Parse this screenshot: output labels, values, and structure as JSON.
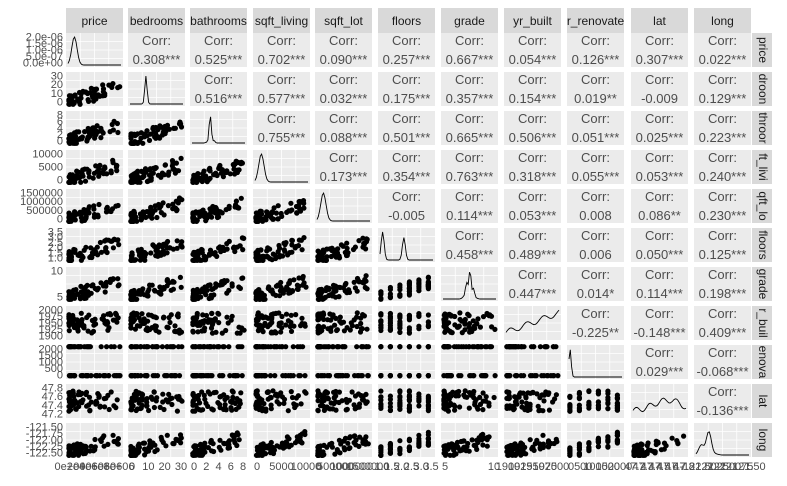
{
  "chart_data": {
    "type": "scatter",
    "title": "",
    "variables": [
      "price",
      "bedrooms",
      "bathrooms",
      "sqft_living",
      "sqft_lot",
      "floors",
      "grade",
      "yr_built",
      "yr_renovated",
      "lat",
      "long"
    ],
    "col_strip_labels": [
      "price",
      "bedrooms",
      "bathrooms",
      "sqft_living",
      "sqft_lot",
      "floors",
      "grade",
      "yr_built",
      "r_renovate",
      "lat",
      "long"
    ],
    "row_strip_labels": [
      "price",
      "droon",
      "throor",
      "ft_livi",
      "qft_lo",
      "floors",
      "grade",
      "r_buil",
      "enova",
      "lat",
      "long"
    ],
    "corr_label": "Corr:",
    "correlations": [
      [
        "0.308***",
        "0.525***",
        "0.702***",
        "0.090***",
        "0.257***",
        "0.667***",
        "0.054***",
        "0.126***",
        "0.307***",
        "0.022***"
      ],
      [
        "0.516***",
        "0.577***",
        "0.032***",
        "0.175***",
        "0.357***",
        "0.154***",
        "0.019**",
        "-0.009",
        "0.129***"
      ],
      [
        "0.755***",
        "0.088***",
        "0.501***",
        "0.665***",
        "0.506***",
        "0.051***",
        "0.025***",
        "0.223***"
      ],
      [
        "0.173***",
        "0.354***",
        "0.763***",
        "0.318***",
        "0.055***",
        "0.053***",
        "0.240***"
      ],
      [
        "-0.005",
        "0.114***",
        "0.053***",
        "0.008",
        "0.086**",
        "0.230***"
      ],
      [
        "0.458***",
        "0.489***",
        "0.006",
        "0.050***",
        "0.125***"
      ],
      [
        "0.447***",
        "0.014*",
        "0.114***",
        "0.198***"
      ],
      [
        "-0.225**",
        "-0.148***",
        "0.409***"
      ],
      [
        "0.029***",
        "-0.068***"
      ],
      [
        "-0.136***"
      ]
    ],
    "y_tick_labels": [
      [
        "2.0e-06",
        "1.5e-06",
        "1.0e-06",
        "5.0e-07",
        "0.0e+00"
      ],
      [
        "30",
        "20",
        "10",
        "0"
      ],
      [
        "8",
        "6",
        "4",
        "2",
        "0"
      ],
      [
        "10000",
        "5000",
        "0"
      ],
      [
        "1500000",
        "1000000",
        "500000",
        "0"
      ],
      [
        "3.5",
        "3.0",
        "2.5",
        "2.0",
        "1.5",
        "1.0"
      ],
      [
        "10",
        "5"
      ],
      [
        "2000",
        "1975",
        "1950",
        "1925",
        "1900"
      ],
      [
        "2000",
        "1500",
        "1000",
        "500",
        "0"
      ],
      [
        "47.8",
        "47.6",
        "47.4",
        "47.2"
      ],
      [
        "-121.50",
        "-121.75",
        "-122.00",
        "-122.25",
        "-122.50"
      ]
    ],
    "x_tick_labels": [
      [
        "0e+00",
        "2e+06",
        "4e+06",
        "6e+06",
        "8e+06"
      ],
      [
        "0",
        "10",
        "20",
        "30"
      ],
      [
        "0",
        "2",
        "4",
        "6",
        "8"
      ],
      [
        "0",
        "5000",
        "10000"
      ],
      [
        "0",
        "500000",
        "1000000",
        "1500000"
      ],
      [
        "1.0",
        "1.5",
        "2.0",
        "2.5",
        "3.0",
        "3.5"
      ],
      [
        "5",
        "10"
      ],
      [
        "1900",
        "1925",
        "1950",
        "1975",
        "2000"
      ],
      [
        "0",
        "500",
        "1000",
        "1500",
        "2000"
      ],
      [
        "47.2",
        "47.3",
        "47.4",
        "47.5",
        "47.6",
        "47.7",
        "47.8"
      ],
      [
        "-122.50",
        "-122.25",
        "-122.00",
        "-121.75",
        "-121.50"
      ]
    ],
    "grid": true,
    "colors": {
      "strip": "#d9d9d9",
      "panel": "#ebebeb",
      "text": "#4d4d4d",
      "points": "#000000"
    }
  }
}
